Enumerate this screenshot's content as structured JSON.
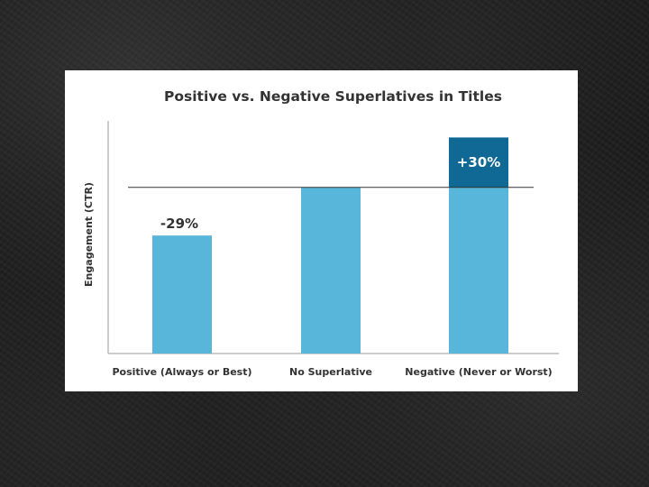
{
  "chart_data": {
    "type": "bar",
    "title": "Positive vs. Negative Superlatives in Titles",
    "xlabel": "",
    "ylabel": "Engagement (CTR)",
    "categories": [
      "Positive (Always or Best)",
      "No Superlative",
      "Negative (Never or Worst)"
    ],
    "values": [
      71,
      100,
      130
    ],
    "baseline": 100,
    "ylim": [
      0,
      140
    ],
    "annotations": [
      "-29%",
      "",
      "+30%"
    ],
    "grid": false,
    "legend": "none",
    "colors": {
      "bar": "#57b6d9",
      "highlight": "#106895",
      "annotation_negative": "#333333",
      "annotation_positive": "#ffffff",
      "baseline_line": "#333333",
      "axis": "#bbbbbb"
    }
  }
}
